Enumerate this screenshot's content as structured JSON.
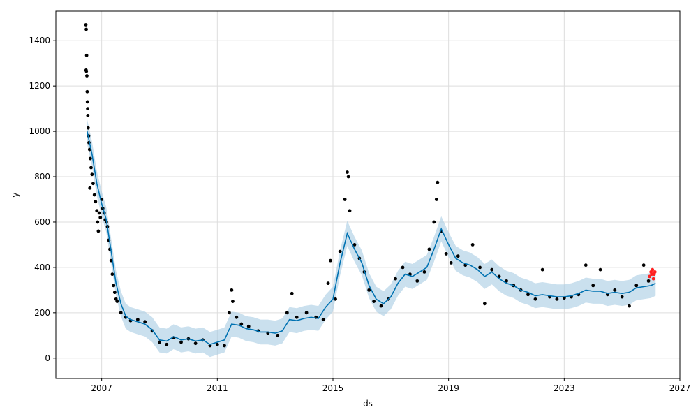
{
  "chart_data": {
    "type": "line",
    "title": "",
    "xlabel": "ds",
    "ylabel": "y",
    "xlim": [
      "2005-06-01",
      "2027-01-01"
    ],
    "ylim": [
      -90,
      1530
    ],
    "grid": true,
    "x_ticks": [
      {
        "label": "2007",
        "date": "2007-01-01"
      },
      {
        "label": "2011",
        "date": "2011-01-01"
      },
      {
        "label": "2015",
        "date": "2015-01-01"
      },
      {
        "label": "2019",
        "date": "2019-01-01"
      },
      {
        "label": "2023",
        "date": "2023-01-01"
      },
      {
        "label": "2027",
        "date": "2027-01-01"
      }
    ],
    "y_ticks": [
      0,
      200,
      400,
      600,
      800,
      1000,
      1200,
      1400
    ],
    "colors": {
      "observed": "#000000",
      "forecast": "#0072b2",
      "interval": "#a6cbe3",
      "recent": "#ff2020",
      "grid": "#dddddd"
    },
    "forecast_band_halfwidth": 55,
    "series": [
      {
        "kind": "trend",
        "points": [
          [
            "2006-07-01",
            1000
          ],
          [
            "2006-09-01",
            900
          ],
          [
            "2006-11-01",
            770
          ],
          [
            "2007-01-01",
            680
          ],
          [
            "2007-03-01",
            610
          ],
          [
            "2007-05-01",
            470
          ],
          [
            "2007-07-01",
            330
          ],
          [
            "2007-09-01",
            240
          ],
          [
            "2007-11-01",
            185
          ],
          [
            "2008-01-01",
            170
          ],
          [
            "2008-04-01",
            160
          ],
          [
            "2008-07-01",
            150
          ],
          [
            "2008-10-01",
            125
          ],
          [
            "2009-01-01",
            80
          ],
          [
            "2009-04-01",
            75
          ],
          [
            "2009-07-01",
            95
          ],
          [
            "2009-10-01",
            80
          ],
          [
            "2010-01-01",
            85
          ],
          [
            "2010-04-01",
            75
          ],
          [
            "2010-07-01",
            80
          ],
          [
            "2010-10-01",
            60
          ],
          [
            "2011-01-01",
            70
          ],
          [
            "2011-04-01",
            80
          ],
          [
            "2011-07-01",
            150
          ],
          [
            "2011-10-01",
            145
          ],
          [
            "2012-01-01",
            130
          ],
          [
            "2012-04-01",
            125
          ],
          [
            "2012-07-01",
            115
          ],
          [
            "2012-10-01",
            115
          ],
          [
            "2013-01-01",
            110
          ],
          [
            "2013-04-01",
            120
          ],
          [
            "2013-07-01",
            170
          ],
          [
            "2013-10-01",
            165
          ],
          [
            "2014-01-01",
            175
          ],
          [
            "2014-04-01",
            180
          ],
          [
            "2014-07-01",
            175
          ],
          [
            "2014-10-01",
            225
          ],
          [
            "2015-01-01",
            260
          ],
          [
            "2015-04-01",
            420
          ],
          [
            "2015-07-01",
            550
          ],
          [
            "2015-10-01",
            480
          ],
          [
            "2016-01-01",
            420
          ],
          [
            "2016-04-01",
            320
          ],
          [
            "2016-07-01",
            260
          ],
          [
            "2016-10-01",
            240
          ],
          [
            "2017-01-01",
            270
          ],
          [
            "2017-04-01",
            330
          ],
          [
            "2017-07-01",
            370
          ],
          [
            "2017-10-01",
            360
          ],
          [
            "2018-01-01",
            380
          ],
          [
            "2018-04-01",
            400
          ],
          [
            "2018-07-01",
            480
          ],
          [
            "2018-10-01",
            570
          ],
          [
            "2019-01-01",
            500
          ],
          [
            "2019-04-01",
            440
          ],
          [
            "2019-07-01",
            420
          ],
          [
            "2019-10-01",
            410
          ],
          [
            "2020-01-01",
            390
          ],
          [
            "2020-04-01",
            360
          ],
          [
            "2020-07-01",
            380
          ],
          [
            "2020-10-01",
            350
          ],
          [
            "2021-01-01",
            330
          ],
          [
            "2021-04-01",
            320
          ],
          [
            "2021-07-01",
            300
          ],
          [
            "2021-10-01",
            290
          ],
          [
            "2022-01-01",
            275
          ],
          [
            "2022-04-01",
            280
          ],
          [
            "2022-07-01",
            275
          ],
          [
            "2022-10-01",
            270
          ],
          [
            "2023-01-01",
            270
          ],
          [
            "2023-04-01",
            275
          ],
          [
            "2023-07-01",
            285
          ],
          [
            "2023-10-01",
            300
          ],
          [
            "2024-01-01",
            295
          ],
          [
            "2024-04-01",
            295
          ],
          [
            "2024-07-01",
            285
          ],
          [
            "2024-10-01",
            290
          ],
          [
            "2025-01-01",
            285
          ],
          [
            "2025-04-01",
            290
          ],
          [
            "2025-07-01",
            310
          ],
          [
            "2025-10-01",
            315
          ],
          [
            "2026-01-01",
            320
          ],
          [
            "2026-03-01",
            330
          ]
        ]
      }
    ],
    "observed_points": [
      [
        "2006-06-15",
        1470
      ],
      [
        "2006-06-20",
        1450
      ],
      [
        "2006-06-25",
        1335
      ],
      [
        "2006-06-18",
        1270
      ],
      [
        "2006-06-22",
        1265
      ],
      [
        "2006-06-28",
        1245
      ],
      [
        "2006-07-02",
        1175
      ],
      [
        "2006-07-05",
        1130
      ],
      [
        "2006-07-08",
        1100
      ],
      [
        "2006-07-10",
        1070
      ],
      [
        "2006-07-15",
        1015
      ],
      [
        "2006-07-20",
        980
      ],
      [
        "2006-07-25",
        950
      ],
      [
        "2006-08-01",
        920
      ],
      [
        "2006-08-10",
        880
      ],
      [
        "2006-08-20",
        840
      ],
      [
        "2006-08-05",
        750
      ],
      [
        "2006-09-01",
        810
      ],
      [
        "2006-09-15",
        770
      ],
      [
        "2006-10-01",
        720
      ],
      [
        "2006-10-15",
        690
      ],
      [
        "2006-11-01",
        650
      ],
      [
        "2006-11-10",
        600
      ],
      [
        "2006-11-20",
        560
      ],
      [
        "2006-12-01",
        640
      ],
      [
        "2006-12-15",
        620
      ],
      [
        "2007-01-01",
        700
      ],
      [
        "2007-01-15",
        660
      ],
      [
        "2007-02-01",
        640
      ],
      [
        "2007-02-15",
        610
      ],
      [
        "2007-03-01",
        600
      ],
      [
        "2007-03-15",
        580
      ],
      [
        "2007-04-01",
        520
      ],
      [
        "2007-04-15",
        480
      ],
      [
        "2007-05-01",
        430
      ],
      [
        "2007-05-15",
        370
      ],
      [
        "2007-06-01",
        320
      ],
      [
        "2007-06-15",
        290
      ],
      [
        "2007-07-01",
        260
      ],
      [
        "2007-07-15",
        250
      ],
      [
        "2007-09-01",
        200
      ],
      [
        "2007-11-01",
        180
      ],
      [
        "2008-01-01",
        165
      ],
      [
        "2008-04-01",
        170
      ],
      [
        "2008-07-01",
        160
      ],
      [
        "2008-10-01",
        120
      ],
      [
        "2009-01-01",
        70
      ],
      [
        "2009-04-01",
        60
      ],
      [
        "2009-07-01",
        90
      ],
      [
        "2009-10-01",
        70
      ],
      [
        "2010-01-01",
        85
      ],
      [
        "2010-04-01",
        65
      ],
      [
        "2010-07-01",
        80
      ],
      [
        "2010-10-01",
        55
      ],
      [
        "2011-01-01",
        60
      ],
      [
        "2011-04-01",
        55
      ],
      [
        "2011-06-01",
        200
      ],
      [
        "2011-07-01",
        300
      ],
      [
        "2011-07-15",
        250
      ],
      [
        "2011-09-01",
        180
      ],
      [
        "2011-11-01",
        150
      ],
      [
        "2012-02-01",
        140
      ],
      [
        "2012-06-01",
        120
      ],
      [
        "2012-10-01",
        110
      ],
      [
        "2013-02-01",
        100
      ],
      [
        "2013-06-01",
        200
      ],
      [
        "2013-08-01",
        285
      ],
      [
        "2013-10-01",
        180
      ],
      [
        "2014-02-01",
        200
      ],
      [
        "2014-06-01",
        180
      ],
      [
        "2014-09-01",
        170
      ],
      [
        "2014-11-01",
        330
      ],
      [
        "2014-12-01",
        430
      ],
      [
        "2015-02-01",
        260
      ],
      [
        "2015-04-01",
        470
      ],
      [
        "2015-06-01",
        700
      ],
      [
        "2015-07-01",
        820
      ],
      [
        "2015-07-15",
        800
      ],
      [
        "2015-08-01",
        650
      ],
      [
        "2015-10-01",
        500
      ],
      [
        "2015-12-01",
        440
      ],
      [
        "2016-02-01",
        380
      ],
      [
        "2016-04-01",
        300
      ],
      [
        "2016-06-01",
        250
      ],
      [
        "2016-09-01",
        230
      ],
      [
        "2016-12-01",
        260
      ],
      [
        "2017-03-01",
        350
      ],
      [
        "2017-06-01",
        400
      ],
      [
        "2017-09-01",
        370
      ],
      [
        "2017-12-01",
        340
      ],
      [
        "2018-03-01",
        380
      ],
      [
        "2018-05-01",
        480
      ],
      [
        "2018-07-01",
        600
      ],
      [
        "2018-08-01",
        700
      ],
      [
        "2018-08-15",
        775
      ],
      [
        "2018-10-01",
        560
      ],
      [
        "2018-12-01",
        460
      ],
      [
        "2019-02-01",
        420
      ],
      [
        "2019-05-01",
        450
      ],
      [
        "2019-08-01",
        410
      ],
      [
        "2019-11-01",
        500
      ],
      [
        "2020-02-01",
        400
      ],
      [
        "2020-04-01",
        240
      ],
      [
        "2020-07-01",
        390
      ],
      [
        "2020-10-01",
        360
      ],
      [
        "2021-01-01",
        340
      ],
      [
        "2021-04-01",
        320
      ],
      [
        "2021-07-01",
        300
      ],
      [
        "2021-10-01",
        280
      ],
      [
        "2022-01-01",
        260
      ],
      [
        "2022-04-01",
        390
      ],
      [
        "2022-07-01",
        270
      ],
      [
        "2022-10-01",
        260
      ],
      [
        "2023-01-01",
        265
      ],
      [
        "2023-04-01",
        270
      ],
      [
        "2023-07-01",
        280
      ],
      [
        "2023-10-01",
        410
      ],
      [
        "2024-01-01",
        320
      ],
      [
        "2024-04-01",
        390
      ],
      [
        "2024-07-01",
        280
      ],
      [
        "2024-10-01",
        300
      ],
      [
        "2025-01-01",
        270
      ],
      [
        "2025-04-01",
        230
      ],
      [
        "2025-07-01",
        320
      ],
      [
        "2025-10-01",
        410
      ],
      [
        "2025-12-01",
        340
      ]
    ],
    "recent_points": [
      [
        "2025-12-15",
        360
      ],
      [
        "2026-01-01",
        380
      ],
      [
        "2026-01-10",
        370
      ],
      [
        "2026-01-20",
        390
      ],
      [
        "2026-02-01",
        350
      ],
      [
        "2026-02-10",
        370
      ],
      [
        "2026-02-20",
        380
      ]
    ]
  }
}
